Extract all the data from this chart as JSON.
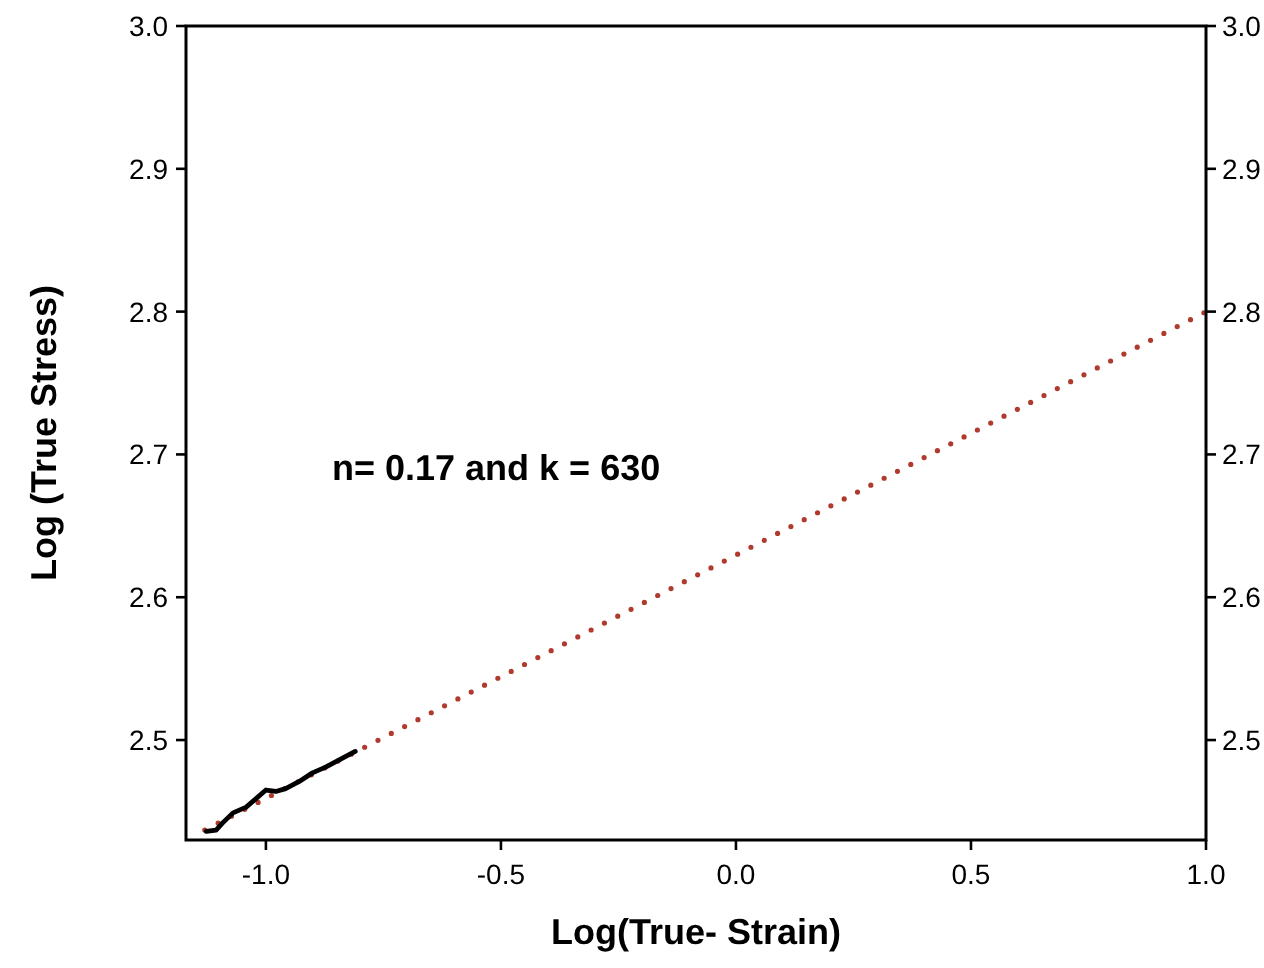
{
  "chart_data": {
    "type": "line",
    "xlabel": "Log(True- Strain)",
    "ylabel": "Log (True Stress)",
    "xlim": [
      -1.17,
      1.0
    ],
    "xticks": [
      {
        "value": -1.0,
        "label": "-1.0"
      },
      {
        "value": -0.5,
        "label": "-0.5"
      },
      {
        "value": 0,
        "label": "0.0"
      },
      {
        "value": 0.5,
        "label": "0.5"
      },
      {
        "value": 1.0,
        "label": "1.0"
      }
    ],
    "ylim": [
      2.43,
      3.0
    ],
    "yticks": [
      {
        "value": 2.5,
        "label": "2.5"
      },
      {
        "value": 2.6,
        "label": "2.6"
      },
      {
        "value": 2.7,
        "label": "2.7"
      },
      {
        "value": 2.8,
        "label": "2.8"
      },
      {
        "value": 2.9,
        "label": "2.9"
      },
      {
        "value": 3.0,
        "label": "3.0"
      }
    ],
    "y2lim": [
      2.43,
      3.0
    ],
    "y2ticks": [
      {
        "value": 2.5,
        "label": "2.5"
      },
      {
        "value": 2.6,
        "label": "2.6"
      },
      {
        "value": 2.7,
        "label": "2.7"
      },
      {
        "value": 2.8,
        "label": "2.8"
      },
      {
        "value": 2.9,
        "label": "2.9"
      },
      {
        "value": 3.0,
        "label": "3.0"
      }
    ],
    "series": [
      {
        "color": "#b03a2e",
        "line_style": "dotted",
        "x": [
          -1.13,
          1.0
        ],
        "values": [
          2.437,
          2.8
        ]
      },
      {
        "color": "#000000",
        "line_style": "solid",
        "x": [
          -1.127,
          -1.106,
          -1.092,
          -1.07,
          -1.042,
          -1.021,
          -1.0,
          -0.979,
          -0.958,
          -0.929,
          -0.901,
          -0.873,
          -0.845,
          -0.81
        ],
        "values": [
          2.436,
          2.437,
          2.442,
          2.449,
          2.453,
          2.459,
          2.465,
          2.464,
          2.466,
          2.471,
          2.477,
          2.481,
          2.486,
          2.492
        ]
      }
    ],
    "annotations": [
      "n= 0.17 and k = 630"
    ],
    "grid": false
  }
}
